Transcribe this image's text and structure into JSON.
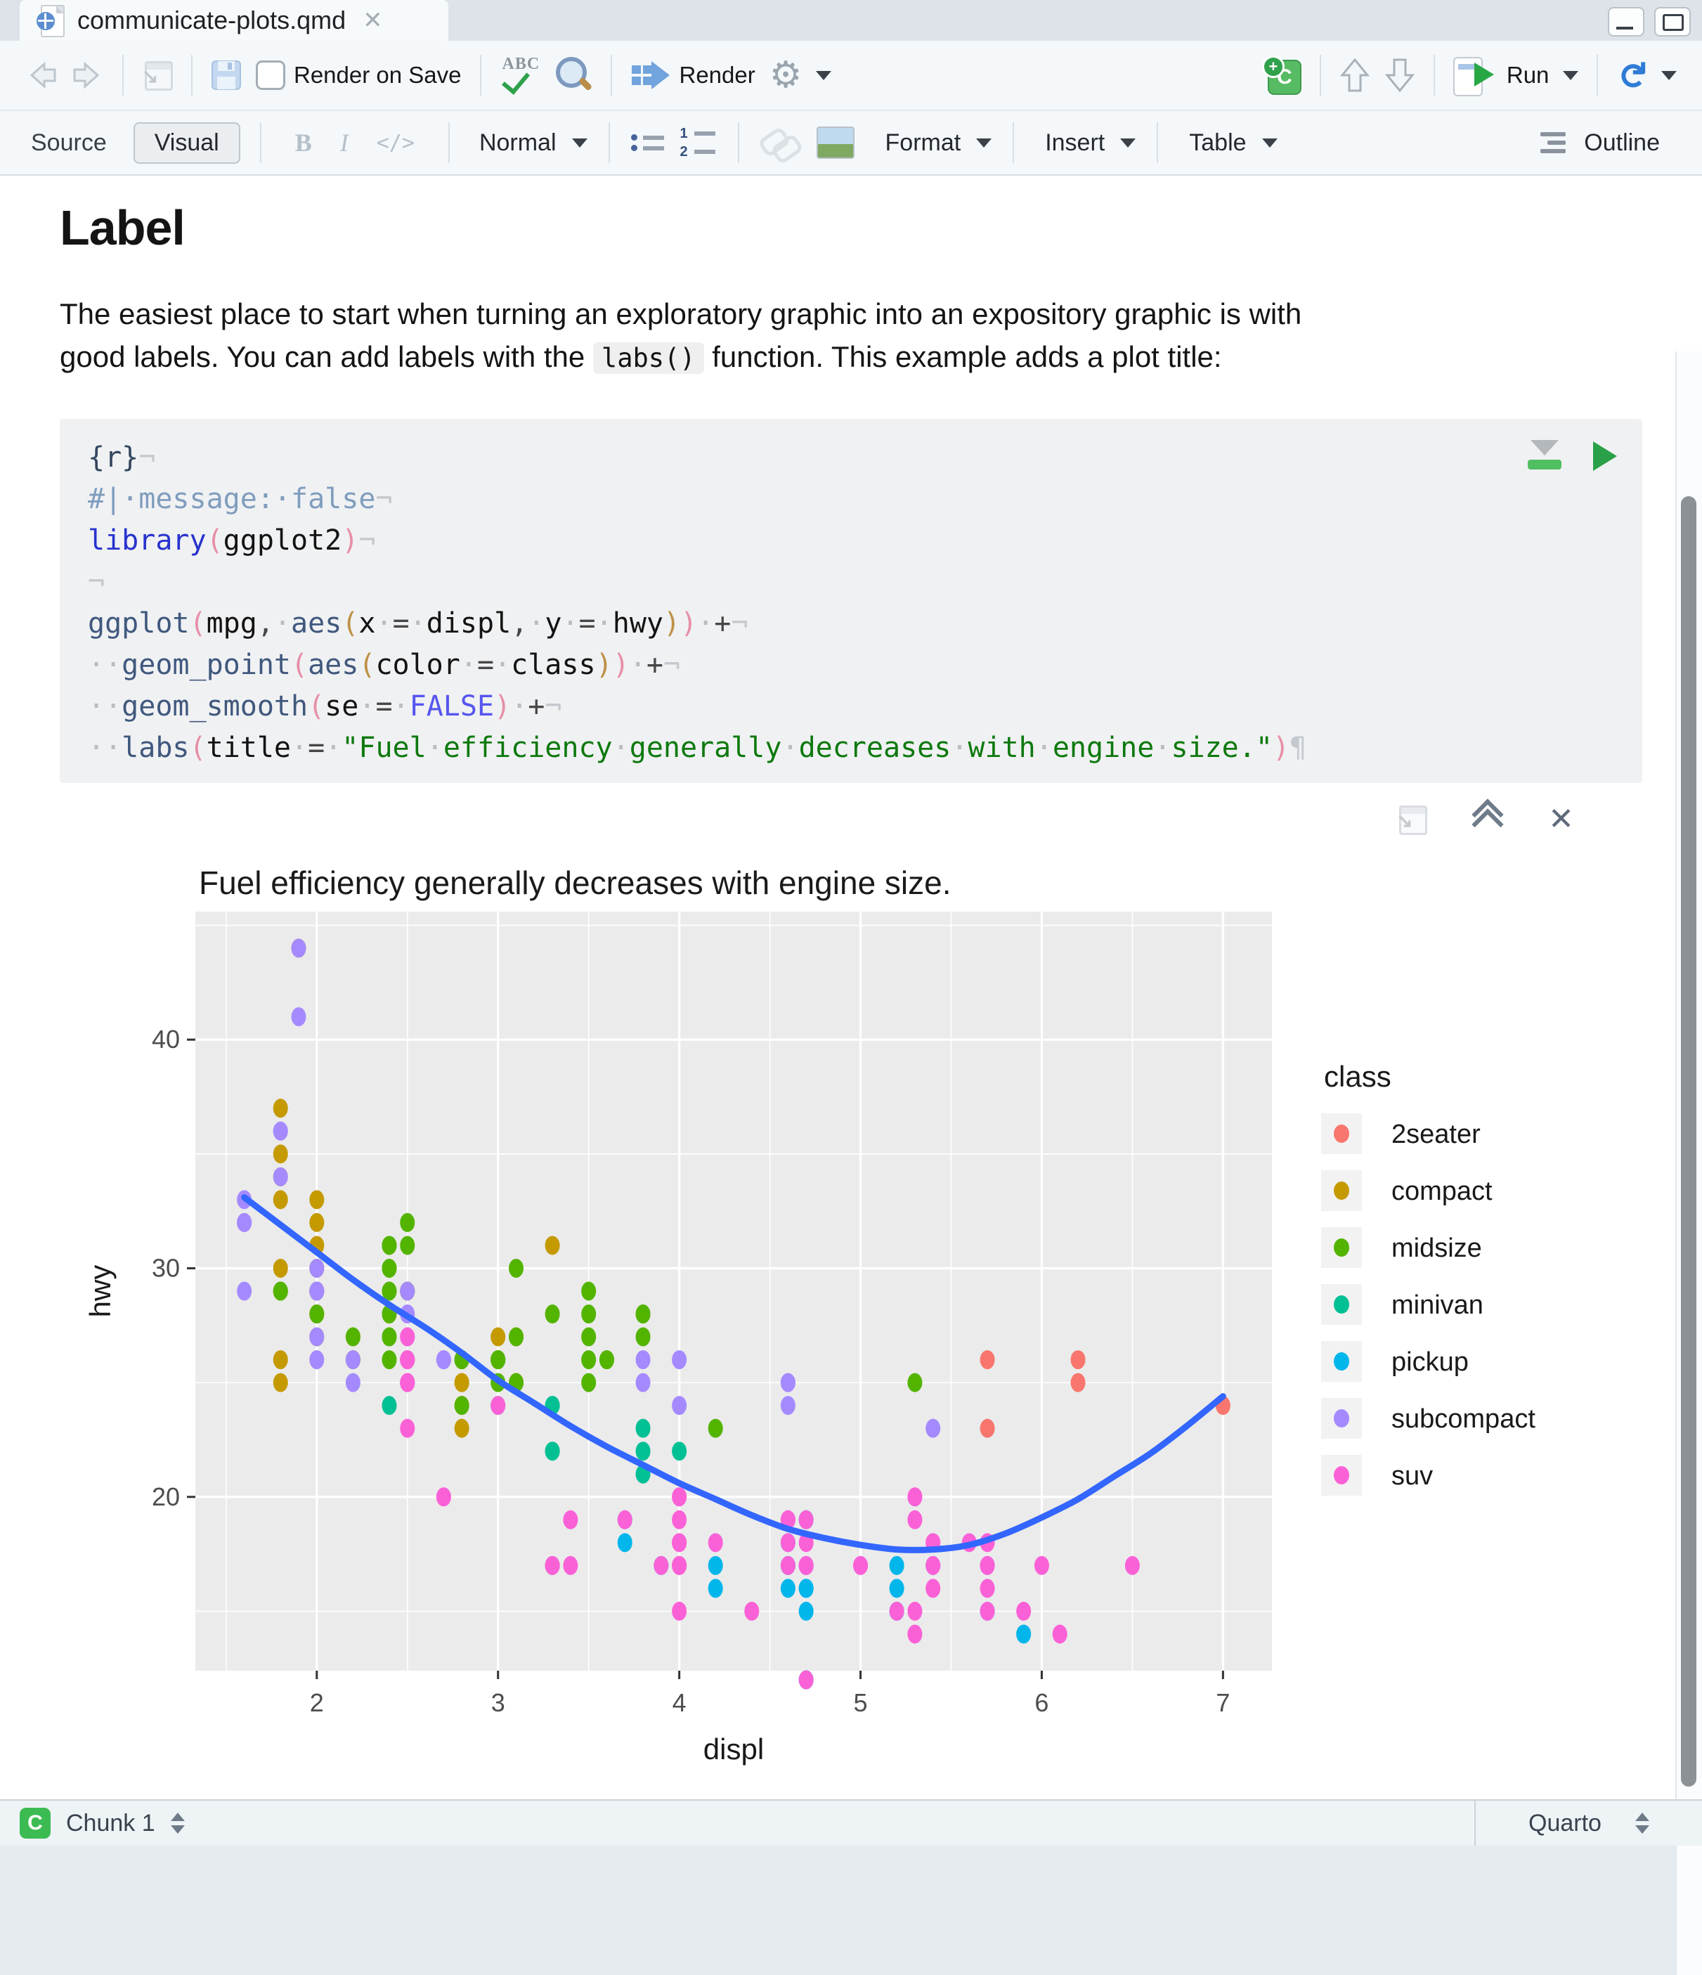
{
  "window": {
    "tab_title": "communicate-plots.qmd"
  },
  "main_toolbar": {
    "render_on_save": "Render on Save",
    "spellcheck": "ABC",
    "render": "Render",
    "run": "Run"
  },
  "editor_toolbar": {
    "source": "Source",
    "visual": "Visual",
    "bold": "B",
    "italic": "I",
    "code": "</>",
    "paragraph_style": "Normal",
    "format": "Format",
    "insert": "Insert",
    "table": "Table",
    "outline": "Outline"
  },
  "document": {
    "heading": "Label",
    "paragraph": {
      "line1": "The easiest place to start when turning an exploratory graphic into an expository graphic is with",
      "line2_pre": "good labels. You can add labels with the ",
      "inline_code": "labs()",
      "line2_post": " function. This example adds a plot title:"
    }
  },
  "code_chunk": {
    "lines": [
      [
        [
          "{r}",
          "hdr"
        ],
        [
          "¬",
          "mk"
        ]
      ],
      [
        [
          "#|·message:·false",
          "cm"
        ],
        [
          "¬",
          "mk"
        ]
      ],
      [
        [
          "library",
          "lib"
        ],
        [
          "(",
          "p1"
        ],
        [
          "ggplot2",
          "id"
        ],
        [
          ")",
          "p1"
        ],
        [
          "¬",
          "mk"
        ]
      ],
      [
        [
          "¬",
          "mk"
        ]
      ],
      [
        [
          "ggplot",
          "fn"
        ],
        [
          "(",
          "p1"
        ],
        [
          "mpg",
          "id"
        ],
        [
          ",",
          "op"
        ],
        [
          "·",
          "ws"
        ],
        [
          "aes",
          "fn"
        ],
        [
          "(",
          "p2"
        ],
        [
          "x",
          "id"
        ],
        [
          "·",
          "ws"
        ],
        [
          "=",
          "op"
        ],
        [
          "·",
          "ws"
        ],
        [
          "displ",
          "id"
        ],
        [
          ",",
          "op"
        ],
        [
          "·",
          "ws"
        ],
        [
          "y",
          "id"
        ],
        [
          "·",
          "ws"
        ],
        [
          "=",
          "op"
        ],
        [
          "·",
          "ws"
        ],
        [
          "hwy",
          "id"
        ],
        [
          ")",
          "p2"
        ],
        [
          ")",
          "p1"
        ],
        [
          "·",
          "ws"
        ],
        [
          "+",
          "op"
        ],
        [
          "¬",
          "mk"
        ]
      ],
      [
        [
          "··",
          "ws"
        ],
        [
          "geom_point",
          "fn"
        ],
        [
          "(",
          "p1"
        ],
        [
          "aes",
          "fn"
        ],
        [
          "(",
          "p2"
        ],
        [
          "color",
          "id"
        ],
        [
          "·",
          "ws"
        ],
        [
          "=",
          "op"
        ],
        [
          "·",
          "ws"
        ],
        [
          "class",
          "id"
        ],
        [
          ")",
          "p2"
        ],
        [
          ")",
          "p1"
        ],
        [
          "·",
          "ws"
        ],
        [
          "+",
          "op"
        ],
        [
          "¬",
          "mk"
        ]
      ],
      [
        [
          "··",
          "ws"
        ],
        [
          "geom_smooth",
          "fn"
        ],
        [
          "(",
          "p1"
        ],
        [
          "se",
          "id"
        ],
        [
          "·",
          "ws"
        ],
        [
          "=",
          "op"
        ],
        [
          "·",
          "ws"
        ],
        [
          "FALSE",
          "const"
        ],
        [
          ")",
          "p1"
        ],
        [
          "·",
          "ws"
        ],
        [
          "+",
          "op"
        ],
        [
          "¬",
          "mk"
        ]
      ],
      [
        [
          "··",
          "ws"
        ],
        [
          "labs",
          "fn"
        ],
        [
          "(",
          "p1"
        ],
        [
          "title",
          "id"
        ],
        [
          "·",
          "ws"
        ],
        [
          "=",
          "op"
        ],
        [
          "·",
          "ws"
        ],
        [
          "\"Fuel",
          "str"
        ],
        [
          "·",
          "ws"
        ],
        [
          "efficiency",
          "str"
        ],
        [
          "·",
          "ws"
        ],
        [
          "generally",
          "str"
        ],
        [
          "·",
          "ws"
        ],
        [
          "decreases",
          "str"
        ],
        [
          "·",
          "ws"
        ],
        [
          "with",
          "str"
        ],
        [
          "·",
          "ws"
        ],
        [
          "engine",
          "str"
        ],
        [
          "·",
          "ws"
        ],
        [
          "size.\"",
          "str"
        ],
        [
          ")",
          "p1"
        ],
        [
          "¶",
          "mk"
        ]
      ]
    ]
  },
  "status_bar": {
    "chunk_label": "Chunk 1",
    "mode": "Quarto"
  },
  "chart_data": {
    "type": "scatter",
    "title": "Fuel efficiency generally decreases with engine size.",
    "xlabel": "displ",
    "ylabel": "hwy",
    "x_range": [
      1.33,
      7.27
    ],
    "y_range": [
      12.4,
      45.6
    ],
    "x_ticks": [
      2,
      3,
      4,
      5,
      6,
      7
    ],
    "y_ticks": [
      20,
      30,
      40
    ],
    "x_minor": [
      1.5,
      2.5,
      3.5,
      4.5,
      5.5,
      6.5
    ],
    "y_minor": [
      15,
      25,
      35,
      45
    ],
    "panel_color": "#EBEBEB",
    "grid_color": "#FFFFFF",
    "tick_label_color": "#4D4D4D",
    "classes": [
      "2seater",
      "compact",
      "midsize",
      "minivan",
      "pickup",
      "subcompact",
      "suv"
    ],
    "class_colors": [
      "#F8766D",
      "#C49A00",
      "#53B400",
      "#00C094",
      "#00B6EB",
      "#A58AFF",
      "#FB61D7"
    ],
    "legend": {
      "title": "class",
      "position": "right",
      "key_fill": "#F2F2F2"
    },
    "smooth_line": {
      "color": "#3366FF",
      "points": [
        [
          1.6,
          33.1
        ],
        [
          1.8,
          31.9
        ],
        [
          2.0,
          30.7
        ],
        [
          2.2,
          29.5
        ],
        [
          2.4,
          28.4
        ],
        [
          2.6,
          27.4
        ],
        [
          2.8,
          26.3
        ],
        [
          3.0,
          25.1
        ],
        [
          3.2,
          24.1
        ],
        [
          3.4,
          23.1
        ],
        [
          3.6,
          22.2
        ],
        [
          3.8,
          21.4
        ],
        [
          4.0,
          20.6
        ],
        [
          4.2,
          19.9
        ],
        [
          4.4,
          19.2
        ],
        [
          4.6,
          18.6
        ],
        [
          4.8,
          18.2
        ],
        [
          5.0,
          17.9
        ],
        [
          5.2,
          17.7
        ],
        [
          5.4,
          17.7
        ],
        [
          5.6,
          17.9
        ],
        [
          5.8,
          18.4
        ],
        [
          6.0,
          19.1
        ],
        [
          6.2,
          19.9
        ],
        [
          6.4,
          20.9
        ],
        [
          6.6,
          21.9
        ],
        [
          6.8,
          23.1
        ],
        [
          7.0,
          24.4
        ]
      ]
    },
    "points": [
      [
        1.8,
        29,
        1
      ],
      [
        1.8,
        29,
        1
      ],
      [
        2,
        31,
        1
      ],
      [
        2,
        30,
        1
      ],
      [
        2.8,
        26,
        1
      ],
      [
        2.8,
        26,
        1
      ],
      [
        3.1,
        27,
        1
      ],
      [
        1.8,
        26,
        1
      ],
      [
        1.8,
        25,
        1
      ],
      [
        2,
        28,
        1
      ],
      [
        2,
        27,
        1
      ],
      [
        2.8,
        25,
        1
      ],
      [
        2.8,
        25,
        1
      ],
      [
        3.1,
        25,
        1
      ],
      [
        3.1,
        25,
        1
      ],
      [
        2.2,
        26,
        1
      ],
      [
        2.2,
        27,
        1
      ],
      [
        2.4,
        28,
        1
      ],
      [
        2.4,
        31,
        1
      ],
      [
        3,
        26,
        1
      ],
      [
        3,
        27,
        1
      ],
      [
        3.3,
        31,
        1
      ],
      [
        1.8,
        30,
        1
      ],
      [
        1.8,
        33,
        1
      ],
      [
        1.8,
        34,
        1
      ],
      [
        1.8,
        35,
        1
      ],
      [
        1.8,
        37,
        1
      ],
      [
        2,
        29,
        1
      ],
      [
        2,
        29,
        1
      ],
      [
        2,
        28,
        1
      ],
      [
        2,
        29,
        1
      ],
      [
        2.8,
        24,
        1
      ],
      [
        1.9,
        44,
        1
      ],
      [
        2,
        33,
        1
      ],
      [
        2,
        32,
        1
      ],
      [
        2,
        29,
        1
      ],
      [
        2,
        29,
        1
      ],
      [
        2.5,
        29,
        1
      ],
      [
        2.5,
        29,
        1
      ],
      [
        2.8,
        23,
        1
      ],
      [
        2.8,
        24,
        1
      ],
      [
        2.8,
        24,
        2
      ],
      [
        3.1,
        25,
        2
      ],
      [
        4.2,
        23,
        2
      ],
      [
        2.4,
        30,
        2
      ],
      [
        2.4,
        29,
        2
      ],
      [
        3.1,
        27,
        2
      ],
      [
        3.5,
        29,
        2
      ],
      [
        3.6,
        26,
        2
      ],
      [
        2.4,
        26,
        2
      ],
      [
        2.4,
        27,
        2
      ],
      [
        2.4,
        30,
        2
      ],
      [
        2.4,
        31,
        2
      ],
      [
        2.5,
        26,
        2
      ],
      [
        2.5,
        29,
        2
      ],
      [
        3.3,
        28,
        2
      ],
      [
        2.4,
        29,
        2
      ],
      [
        2.4,
        27,
        2
      ],
      [
        2.5,
        31,
        2
      ],
      [
        2.5,
        32,
        2
      ],
      [
        3.5,
        27,
        2
      ],
      [
        3.5,
        26,
        2
      ],
      [
        3,
        26,
        2
      ],
      [
        3,
        25,
        2
      ],
      [
        3.5,
        25,
        2
      ],
      [
        3.1,
        30,
        2
      ],
      [
        3.8,
        28,
        2
      ],
      [
        3.8,
        27,
        2
      ],
      [
        3.8,
        28,
        2
      ],
      [
        5.3,
        25,
        2
      ],
      [
        2.2,
        26,
        2
      ],
      [
        2.2,
        27,
        2
      ],
      [
        2.4,
        28,
        2
      ],
      [
        2.4,
        31,
        2
      ],
      [
        3,
        26,
        2
      ],
      [
        3,
        26,
        2
      ],
      [
        3.5,
        28,
        2
      ],
      [
        1.8,
        29,
        2
      ],
      [
        1.8,
        29,
        2
      ],
      [
        2,
        28,
        2
      ],
      [
        2,
        29,
        2
      ],
      [
        2.8,
        26,
        2
      ],
      [
        2.8,
        26,
        2
      ],
      [
        3.6,
        26,
        2
      ],
      [
        2.4,
        24,
        3
      ],
      [
        3,
        24,
        3
      ],
      [
        3.3,
        22,
        3
      ],
      [
        3.3,
        22,
        3
      ],
      [
        3.3,
        24,
        3
      ],
      [
        3.3,
        24,
        3
      ],
      [
        3.3,
        17,
        3
      ],
      [
        3.8,
        22,
        3
      ],
      [
        3.8,
        21,
        3
      ],
      [
        3.8,
        23,
        3
      ],
      [
        4,
        22,
        3
      ],
      [
        3.7,
        19,
        4
      ],
      [
        3.7,
        18,
        4
      ],
      [
        3.9,
        17,
        4
      ],
      [
        3.9,
        17,
        4
      ],
      [
        4.7,
        19,
        4
      ],
      [
        4.7,
        19,
        4
      ],
      [
        4.7,
        12,
        4
      ],
      [
        5.2,
        17,
        4
      ],
      [
        5.2,
        15,
        4
      ],
      [
        4.2,
        17,
        4
      ],
      [
        4.2,
        16,
        4
      ],
      [
        4.6,
        18,
        4
      ],
      [
        4.6,
        17,
        4
      ],
      [
        4.6,
        16,
        4
      ],
      [
        4.6,
        17,
        4
      ],
      [
        5.4,
        17,
        4
      ],
      [
        4.7,
        16,
        4
      ],
      [
        4.7,
        17,
        4
      ],
      [
        4.7,
        15,
        4
      ],
      [
        4.7,
        17,
        4
      ],
      [
        4.7,
        12,
        4
      ],
      [
        4.7,
        16,
        4
      ],
      [
        5.2,
        16,
        4
      ],
      [
        5.2,
        15,
        4
      ],
      [
        5.7,
        15,
        4
      ],
      [
        5.9,
        14,
        4
      ],
      [
        4.7,
        17,
        4
      ],
      [
        4.7,
        17,
        4
      ],
      [
        4.7,
        16,
        4
      ],
      [
        5.7,
        17,
        4
      ],
      [
        3.8,
        26,
        5
      ],
      [
        3.8,
        25,
        5
      ],
      [
        4,
        26,
        5
      ],
      [
        4,
        24,
        5
      ],
      [
        4.6,
        25,
        5
      ],
      [
        4.6,
        25,
        5
      ],
      [
        4.6,
        25,
        5
      ],
      [
        4.6,
        24,
        5
      ],
      [
        5.4,
        23,
        5
      ],
      [
        1.6,
        33,
        5
      ],
      [
        1.6,
        32,
        5
      ],
      [
        1.6,
        32,
        5
      ],
      [
        1.6,
        29,
        5
      ],
      [
        1.6,
        32,
        5
      ],
      [
        1.8,
        34,
        5
      ],
      [
        1.8,
        36,
        5
      ],
      [
        1.8,
        36,
        5
      ],
      [
        2,
        29,
        5
      ],
      [
        2,
        26,
        5
      ],
      [
        2,
        27,
        5
      ],
      [
        2,
        30,
        5
      ],
      [
        2,
        29,
        5
      ],
      [
        2.7,
        26,
        5
      ],
      [
        2.7,
        26,
        5
      ],
      [
        2.7,
        26,
        5
      ],
      [
        2.2,
        26,
        5
      ],
      [
        2.2,
        25,
        5
      ],
      [
        2.5,
        25,
        5
      ],
      [
        2.5,
        25,
        5
      ],
      [
        2.5,
        26,
        5
      ],
      [
        2.5,
        27,
        5
      ],
      [
        1.9,
        44,
        5
      ],
      [
        1.9,
        41,
        5
      ],
      [
        2,
        29,
        5
      ],
      [
        2,
        29,
        5
      ],
      [
        2.5,
        28,
        5
      ],
      [
        2.5,
        29,
        5
      ],
      [
        5.3,
        20,
        6
      ],
      [
        5.3,
        15,
        6
      ],
      [
        5.3,
        20,
        6
      ],
      [
        5.7,
        17,
        6
      ],
      [
        6,
        17,
        6
      ],
      [
        5.3,
        19,
        6
      ],
      [
        5.3,
        14,
        6
      ],
      [
        5.7,
        17,
        6
      ],
      [
        6.5,
        17,
        6
      ],
      [
        3.9,
        17,
        6
      ],
      [
        4.7,
        17,
        6
      ],
      [
        4.7,
        17,
        6
      ],
      [
        4.7,
        18,
        6
      ],
      [
        4.7,
        12,
        6
      ],
      [
        5.2,
        15,
        6
      ],
      [
        5.7,
        16,
        6
      ],
      [
        5.9,
        15,
        6
      ],
      [
        4.6,
        17,
        6
      ],
      [
        5.4,
        17,
        6
      ],
      [
        5.4,
        18,
        6
      ],
      [
        4,
        17,
        6
      ],
      [
        4,
        17,
        6
      ],
      [
        4,
        18,
        6
      ],
      [
        4,
        17,
        6
      ],
      [
        4.6,
        19,
        6
      ],
      [
        5,
        17,
        6
      ],
      [
        3,
        24,
        6
      ],
      [
        3.7,
        19,
        6
      ],
      [
        4,
        20,
        6
      ],
      [
        4.7,
        17,
        6
      ],
      [
        4.7,
        17,
        6
      ],
      [
        4.7,
        19,
        6
      ],
      [
        5.7,
        15,
        6
      ],
      [
        6.1,
        14,
        6
      ],
      [
        4,
        15,
        6
      ],
      [
        4.2,
        18,
        6
      ],
      [
        4.4,
        15,
        6
      ],
      [
        4.6,
        18,
        6
      ],
      [
        5.4,
        17,
        6
      ],
      [
        5.4,
        16,
        6
      ],
      [
        5.4,
        18,
        6
      ],
      [
        4,
        17,
        6
      ],
      [
        4,
        19,
        6
      ],
      [
        4.6,
        19,
        6
      ],
      [
        5,
        17,
        6
      ],
      [
        3.3,
        17,
        6
      ],
      [
        3.3,
        17,
        6
      ],
      [
        4,
        18,
        6
      ],
      [
        5.6,
        18,
        6
      ],
      [
        2.5,
        26,
        6
      ],
      [
        2.5,
        25,
        6
      ],
      [
        2.5,
        27,
        6
      ],
      [
        2.5,
        25,
        6
      ],
      [
        2.5,
        26,
        6
      ],
      [
        2.5,
        23,
        6
      ],
      [
        2.7,
        20,
        6
      ],
      [
        2.7,
        20,
        6
      ],
      [
        3.4,
        19,
        6
      ],
      [
        3.4,
        17,
        6
      ],
      [
        4,
        20,
        6
      ],
      [
        4.7,
        17,
        6
      ],
      [
        4.7,
        17,
        6
      ],
      [
        5.7,
        18,
        6
      ],
      [
        5.7,
        26,
        0
      ],
      [
        5.7,
        23,
        0
      ],
      [
        6.2,
        26,
        0
      ],
      [
        6.2,
        25,
        0
      ],
      [
        7,
        24,
        0
      ]
    ]
  }
}
